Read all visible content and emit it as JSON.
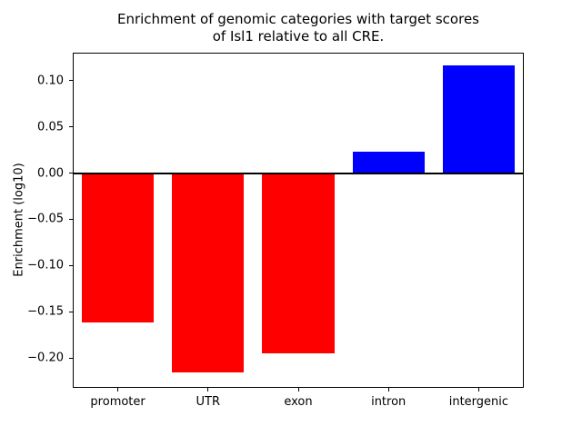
{
  "title": {
    "line1": "Enrichment of genomic categories with target scores",
    "line2": "of Isl1 relative to all CRE."
  },
  "ylabel": "Enrichment (log10)",
  "chart_data": {
    "type": "bar",
    "title": "Enrichment of genomic categories with target scores\nof Isl1 relative to all CRE.",
    "xlabel": "",
    "ylabel": "Enrichment (log10)",
    "categories": [
      "promoter",
      "UTR",
      "exon",
      "intron",
      "intergenic"
    ],
    "values": [
      -0.161,
      -0.215,
      -0.195,
      0.023,
      0.116
    ],
    "ylim": [
      -0.232,
      0.13
    ],
    "yticks": [
      0.1,
      0.05,
      0.0,
      -0.05,
      -0.1,
      -0.15,
      -0.2
    ],
    "bar_width_fraction": 0.8,
    "colors": {
      "positive": "#0000ff",
      "negative": "#ff0000",
      "axis": "#000000"
    },
    "grid": false,
    "legend": "none",
    "zero_line": true
  }
}
